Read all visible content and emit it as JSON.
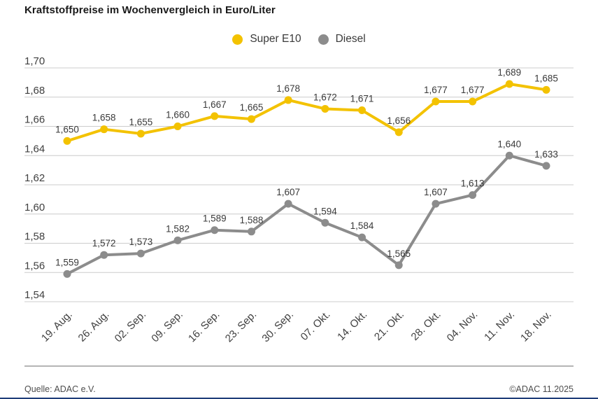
{
  "title": "Kraftstoffpreise im Wochenvergleich in Euro/Liter",
  "legend": {
    "super_e10_label": "Super E10",
    "diesel_label": "Diesel"
  },
  "footer": {
    "source": "Quelle: ADAC e.V.",
    "copyright": "©ADAC 11.2025"
  },
  "colors": {
    "super_e10": "#F3C200",
    "diesel": "#8C8C8C",
    "grid": "#CCCCCC",
    "accent_bar": "#1E3C78"
  },
  "chart_data": {
    "type": "line",
    "title": "Kraftstoffpreise im Wochenvergleich in Euro/Liter",
    "ylabel": "",
    "xlabel": "",
    "ylim": [
      1.54,
      1.7
    ],
    "grid": true,
    "legend_position": "top-center",
    "categories": [
      "19. Aug.",
      "26. Aug.",
      "02. Sep.",
      "09. Sep.",
      "16. Sep.",
      "23. Sep.",
      "30. Sep.",
      "07. Okt.",
      "14. Okt.",
      "21. Okt.",
      "28. Okt.",
      "04. Nov.",
      "11. Nov.",
      "18. Nov."
    ],
    "series": [
      {
        "name": "Super E10",
        "color": "#F3C200",
        "values": [
          1.65,
          1.658,
          1.655,
          1.66,
          1.667,
          1.665,
          1.678,
          1.672,
          1.671,
          1.656,
          1.677,
          1.677,
          1.689,
          1.685
        ],
        "labels": [
          "1,650",
          "1,658",
          "1,655",
          "1,660",
          "1,667",
          "1,665",
          "1,678",
          "1,672",
          "1,671",
          "1,656",
          "1,677",
          "1,677",
          "1,689",
          "1,685"
        ]
      },
      {
        "name": "Diesel",
        "color": "#8C8C8C",
        "values": [
          1.559,
          1.572,
          1.573,
          1.582,
          1.589,
          1.588,
          1.607,
          1.594,
          1.584,
          1.565,
          1.607,
          1.613,
          1.64,
          1.633
        ],
        "labels": [
          "1,559",
          "1,572",
          "1,573",
          "1,582",
          "1,589",
          "1,588",
          "1,607",
          "1,594",
          "1,584",
          "1,565",
          "1,607",
          "1,613",
          "1,640",
          "1,633"
        ]
      }
    ],
    "yticks": [
      {
        "label": "1,70",
        "value": 1.7
      },
      {
        "label": "1,68",
        "value": 1.68
      },
      {
        "label": "1,66",
        "value": 1.66
      },
      {
        "label": "1,64",
        "value": 1.64
      },
      {
        "label": "1,62",
        "value": 1.62
      },
      {
        "label": "1,60",
        "value": 1.6
      },
      {
        "label": "1,58",
        "value": 1.58
      },
      {
        "label": "1,56",
        "value": 1.56
      },
      {
        "label": "1,54",
        "value": 1.54
      }
    ]
  }
}
